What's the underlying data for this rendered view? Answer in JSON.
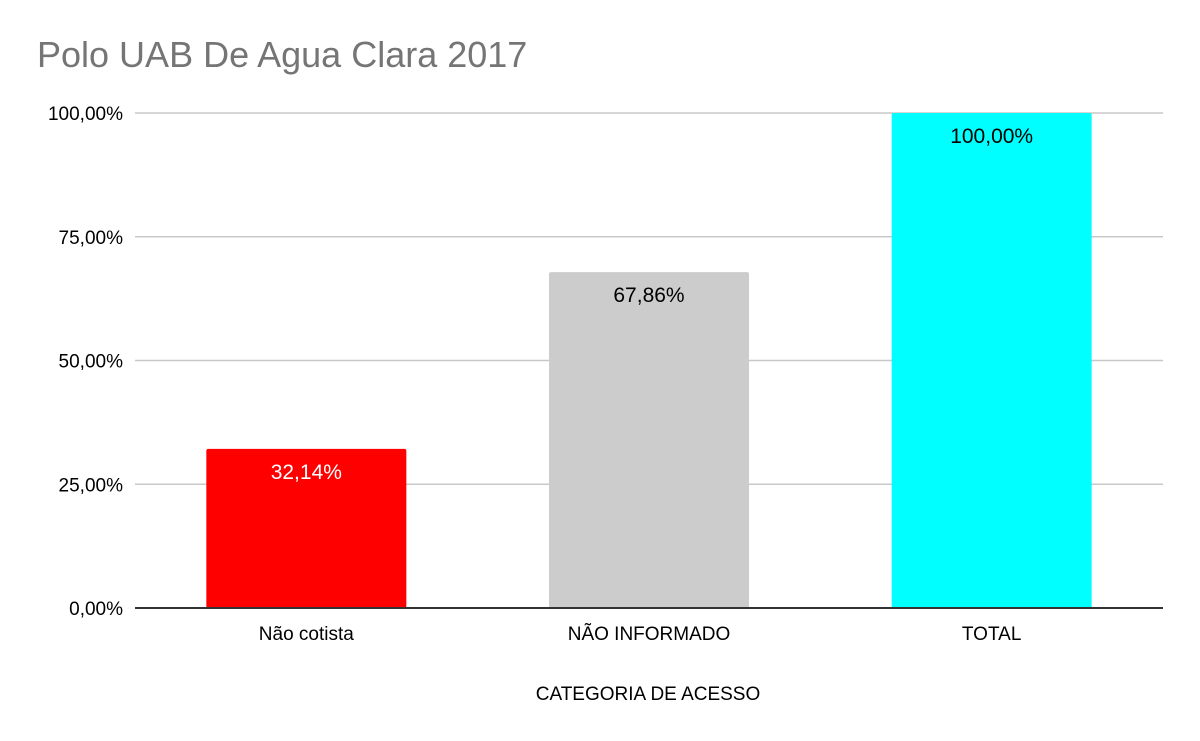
{
  "chart_data": {
    "type": "bar",
    "title": "Polo UAB De Agua Clara 2017",
    "xlabel": "CATEGORIA DE ACESSO",
    "ylabel": "",
    "categories": [
      "Não cotista",
      "NÃO INFORMADO",
      "TOTAL"
    ],
    "values": [
      32.14,
      67.86,
      100.0
    ],
    "value_labels": [
      "32,14%",
      "67,86%",
      "100,00%"
    ],
    "bar_colors": [
      "#ff0000",
      "#cccccc",
      "#00ffff"
    ],
    "label_colors": [
      "#ffffff",
      "#000000",
      "#000000"
    ],
    "ylim": [
      0,
      100
    ],
    "yticks": [
      0,
      25,
      50,
      75,
      100
    ],
    "ytick_labels": [
      "0,00%",
      "25,00%",
      "50,00%",
      "75,00%",
      "100,00%"
    ],
    "grid": true,
    "legend": "none"
  }
}
